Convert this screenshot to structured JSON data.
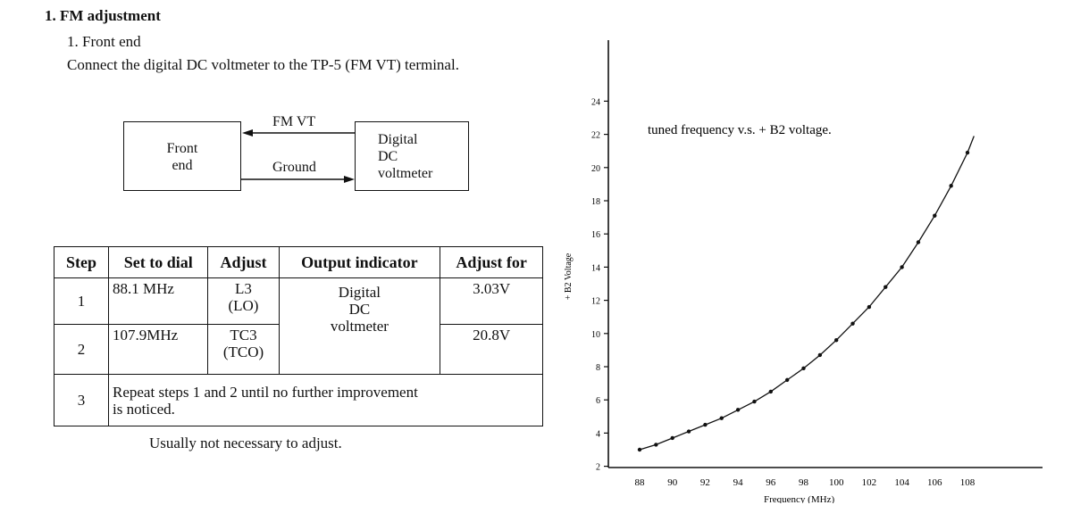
{
  "section": {
    "heading": "1. FM adjustment",
    "subheading": "1. Front end",
    "instruction": "Connect the digital DC voltmeter to the TP-5 (FM VT) terminal."
  },
  "diagram": {
    "box_left_line1": "Front",
    "box_left_line2": "end",
    "box_right_line1": "Digital",
    "box_right_line2": "DC",
    "box_right_line3": "voltmeter",
    "wire_top_label": "FM VT",
    "wire_bottom_label": "Ground"
  },
  "table": {
    "headers": [
      "Step",
      "Set to dial",
      "Adjust",
      "Output indicator",
      "Adjust for"
    ],
    "rows": [
      {
        "step": "1",
        "dial": "88.1 MHz",
        "adjust_line1": "L3",
        "adjust_line2": "(LO)",
        "adjust_for": "3.03V"
      },
      {
        "step": "2",
        "dial": "107.9MHz",
        "adjust_line1": "TC3",
        "adjust_line2": "(TCO)",
        "adjust_for": "20.8V"
      }
    ],
    "output_line1": "Digital",
    "output_line2": "DC",
    "output_line3": "voltmeter",
    "step3": "3",
    "step3_text_line1": "Repeat steps 1 and 2 until no further improvement",
    "step3_text_line2": "is noticed."
  },
  "note": "Usually not necessary to adjust.",
  "chart_data": {
    "type": "line",
    "annotation": "tuned frequency v.s. + B2 voltage.",
    "xlabel": "Frequency (MHz)",
    "ylabel": "+ B2 Voltage",
    "xlim": [
      87,
      110
    ],
    "ylim": [
      0,
      26
    ],
    "x_ticks": [
      88,
      90,
      92,
      94,
      96,
      98,
      100,
      102,
      104,
      106,
      108
    ],
    "y_ticks": [
      2,
      4,
      6,
      8,
      10,
      12,
      14,
      16,
      18,
      20,
      22,
      24
    ],
    "series": [
      {
        "x": [
          88,
          89,
          90,
          91,
          92,
          93,
          94,
          95,
          96,
          97,
          98,
          99,
          100,
          101,
          102,
          103,
          104,
          105,
          106,
          107,
          108
        ],
        "y": [
          3.0,
          3.3,
          3.7,
          4.1,
          4.5,
          4.9,
          5.4,
          5.9,
          6.5,
          7.2,
          7.9,
          8.7,
          9.6,
          10.6,
          11.6,
          12.8,
          14.0,
          15.5,
          17.1,
          18.9,
          20.9
        ]
      }
    ],
    "grid": false
  }
}
